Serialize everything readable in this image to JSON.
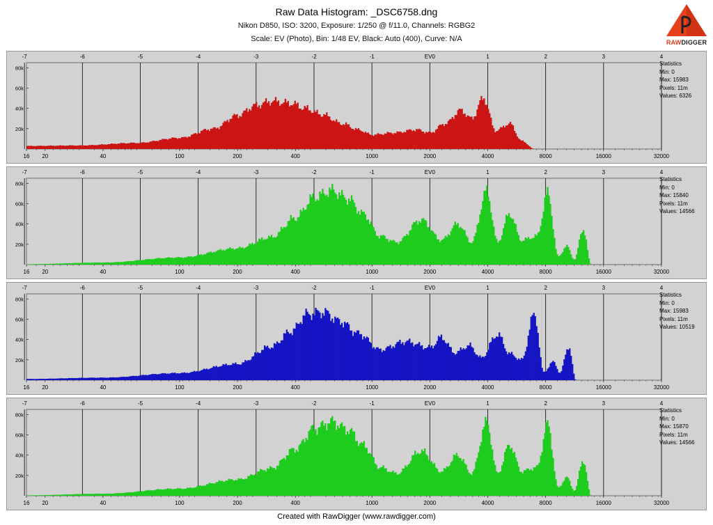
{
  "header": {
    "title": "Raw Data Histogram: _DSC6758.dng",
    "subtitle1": "Nikon D850, ISO: 3200, Exposure: 1/250 @ f/11.0, Channels: RGBG2",
    "subtitle2": "Scale: EV (Photo), Bin: 1/48 EV, Black: Auto (400), Curve: N/A"
  },
  "logo": {
    "text_raw": "RAW",
    "text_digger": "DIGGER"
  },
  "footer": "Created with RawDigger (www.rawdigger.com)",
  "colors": {
    "R": "#cc1414",
    "G": "#1ecc1e",
    "B": "#1414c4",
    "G2": "#1ecc1e",
    "panel_bg": "#d2d2d2",
    "grid": "#000000"
  },
  "chart_data": {
    "type": "histogram",
    "x_scale": "log2 (EV)",
    "ev_ticks": [
      "-7",
      "-6",
      "-5",
      "-4",
      "-3",
      "-2",
      "-1",
      "EV0",
      "1",
      "2",
      "3",
      "4"
    ],
    "value_ticks": [
      "16",
      "20",
      "40",
      "100",
      "200",
      "400",
      "1000",
      "2000",
      "4000",
      "8000",
      "16000",
      "32000"
    ],
    "y_ticks": [
      "20k",
      "40k",
      "60k",
      "80k"
    ],
    "ylim": [
      0,
      85000
    ],
    "xlim_values": [
      16,
      32000
    ],
    "stats_title": "Statistics",
    "series": [
      {
        "name": "R",
        "color": "#cc1414",
        "stats": {
          "min": "Min: 0",
          "max": "Max: 15983",
          "pixels": "Pixels: 11m",
          "values": "Values: 6326"
        },
        "peaks": [
          [
            16,
            3000
          ],
          [
            30,
            3500
          ],
          [
            60,
            6000
          ],
          [
            100,
            11000
          ],
          [
            150,
            20000
          ],
          [
            200,
            33000
          ],
          [
            250,
            43000
          ],
          [
            300,
            47000
          ],
          [
            380,
            45000
          ],
          [
            450,
            40000
          ],
          [
            550,
            34000
          ],
          [
            700,
            25000
          ],
          [
            850,
            19000
          ],
          [
            1000,
            14000
          ],
          [
            1300,
            16000
          ],
          [
            1700,
            19000
          ],
          [
            2000,
            16000
          ],
          [
            2400,
            25000
          ],
          [
            2900,
            38000
          ],
          [
            3300,
            30000
          ],
          [
            3800,
            50000
          ],
          [
            4400,
            18000
          ],
          [
            5200,
            25000
          ],
          [
            6000,
            8000
          ],
          [
            7000,
            0
          ]
        ]
      },
      {
        "name": "G",
        "color": "#1ecc1e",
        "stats": {
          "min": "Min: 0",
          "max": "Max: 15840",
          "pixels": "Pixels: 11m",
          "values": "Values: 14566"
        },
        "peaks": [
          [
            16,
            400
          ],
          [
            40,
            2000
          ],
          [
            100,
            7000
          ],
          [
            200,
            16000
          ],
          [
            300,
            27000
          ],
          [
            400,
            46000
          ],
          [
            500,
            66000
          ],
          [
            620,
            73000
          ],
          [
            750,
            65000
          ],
          [
            900,
            50000
          ],
          [
            1100,
            28000
          ],
          [
            1350,
            22000
          ],
          [
            1800,
            44000
          ],
          [
            2300,
            24000
          ],
          [
            2800,
            40000
          ],
          [
            3300,
            22000
          ],
          [
            3950,
            72000
          ],
          [
            4500,
            22000
          ],
          [
            5200,
            50000
          ],
          [
            6000,
            24000
          ],
          [
            7200,
            28000
          ],
          [
            8200,
            70000
          ],
          [
            9300,
            8000
          ],
          [
            10300,
            18000
          ],
          [
            11300,
            5000
          ],
          [
            12500,
            35000
          ],
          [
            13800,
            0
          ]
        ]
      },
      {
        "name": "B",
        "color": "#1414c4",
        "stats": {
          "min": "Min: 0",
          "max": "Max: 15983",
          "pixels": "Pixels: 11m",
          "values": "Values: 10519"
        },
        "peaks": [
          [
            16,
            1200
          ],
          [
            40,
            2500
          ],
          [
            100,
            7000
          ],
          [
            200,
            16000
          ],
          [
            300,
            33000
          ],
          [
            380,
            48000
          ],
          [
            460,
            65000
          ],
          [
            560,
            67000
          ],
          [
            680,
            58000
          ],
          [
            850,
            46000
          ],
          [
            1100,
            30000
          ],
          [
            1500,
            38000
          ],
          [
            2000,
            32000
          ],
          [
            2300,
            42000
          ],
          [
            2700,
            27000
          ],
          [
            3200,
            34000
          ],
          [
            3700,
            22000
          ],
          [
            4500,
            45000
          ],
          [
            5200,
            26000
          ],
          [
            6000,
            20000
          ],
          [
            7000,
            65000
          ],
          [
            7800,
            8000
          ],
          [
            8800,
            18000
          ],
          [
            9500,
            7000
          ],
          [
            10500,
            33000
          ],
          [
            11500,
            0
          ]
        ]
      },
      {
        "name": "G2",
        "color": "#1ecc1e",
        "stats": {
          "min": "Min: 0",
          "max": "Max: 15870",
          "pixels": "Pixels: 11m",
          "values": "Values: 14566"
        },
        "peaks": [
          [
            16,
            400
          ],
          [
            40,
            2000
          ],
          [
            100,
            7000
          ],
          [
            200,
            16000
          ],
          [
            300,
            27000
          ],
          [
            400,
            46000
          ],
          [
            500,
            66000
          ],
          [
            620,
            73000
          ],
          [
            750,
            65000
          ],
          [
            900,
            50000
          ],
          [
            1100,
            28000
          ],
          [
            1350,
            22000
          ],
          [
            1800,
            44000
          ],
          [
            2300,
            24000
          ],
          [
            2800,
            40000
          ],
          [
            3300,
            22000
          ],
          [
            3950,
            72000
          ],
          [
            4500,
            22000
          ],
          [
            5200,
            50000
          ],
          [
            6000,
            24000
          ],
          [
            7200,
            28000
          ],
          [
            8200,
            70000
          ],
          [
            9300,
            8000
          ],
          [
            10300,
            18000
          ],
          [
            11300,
            5000
          ],
          [
            12500,
            35000
          ],
          [
            13800,
            0
          ]
        ]
      }
    ]
  }
}
